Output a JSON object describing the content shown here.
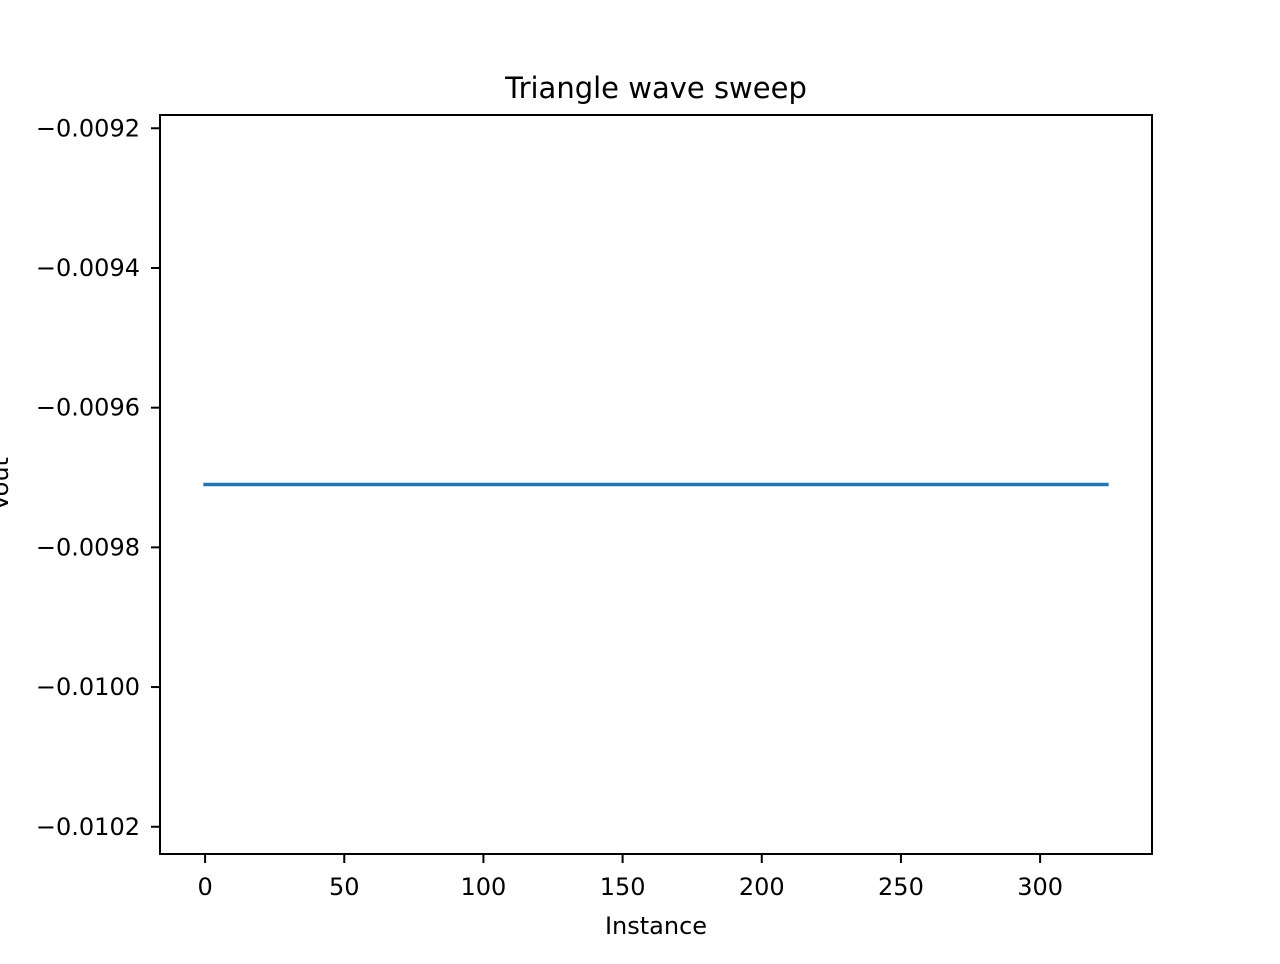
{
  "chart_data": {
    "type": "line",
    "title": "Triangle wave sweep",
    "xlabel": "Instance",
    "ylabel": "Vout",
    "xlim": [
      -16.2,
      340.2
    ],
    "ylim": [
      -0.010239,
      -0.009181
    ],
    "x_ticks": [
      0,
      50,
      100,
      150,
      200,
      250,
      300
    ],
    "x_tick_labels": [
      "0",
      "50",
      "100",
      "150",
      "200",
      "250",
      "300"
    ],
    "y_ticks": [
      -0.0092,
      -0.0094,
      -0.0096,
      -0.0098,
      -0.01,
      -0.0102
    ],
    "y_tick_labels": [
      "−0.0092",
      "−0.0094",
      "−0.0096",
      "−0.0098",
      "−0.0100",
      "−0.0102"
    ],
    "grid": false,
    "series": [
      {
        "color": "#1f77b4",
        "x": [
          0,
          324
        ],
        "y": [
          -0.00971,
          -0.00971
        ]
      }
    ]
  }
}
